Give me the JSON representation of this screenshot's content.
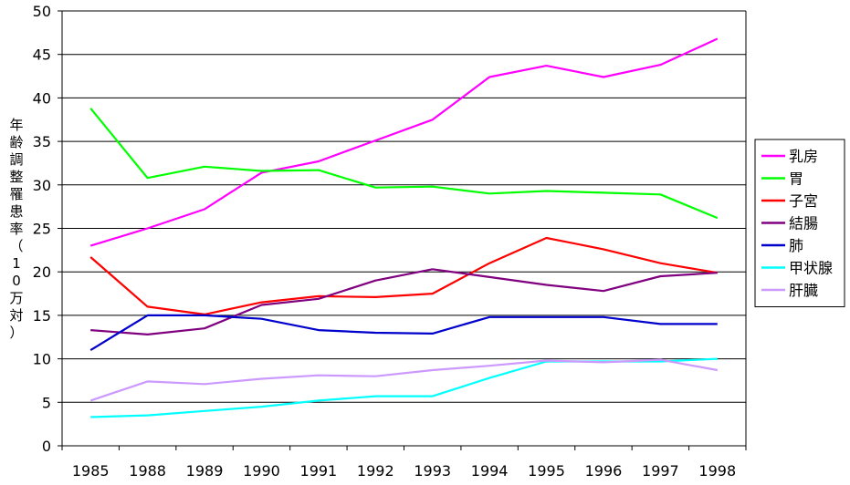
{
  "chart_data": {
    "type": "line",
    "title": "",
    "xlabel": "",
    "ylabel": "年齢調整罹患率（10万対）",
    "ylim": [
      0,
      50
    ],
    "yticks": [
      "0",
      "5",
      "10",
      "15",
      "20",
      "25",
      "30",
      "35",
      "40",
      "45",
      "50"
    ],
    "categories": [
      "1985",
      "1988",
      "1989",
      "1990",
      "1991",
      "1992",
      "1993",
      "1994",
      "1995",
      "1996",
      "1997",
      "1998"
    ],
    "grid": "horizontal",
    "legend_position": "right",
    "series": [
      {
        "name": "乳房",
        "color": "#FF00FF",
        "values": [
          23.0,
          25.0,
          27.2,
          31.4,
          32.7,
          35.1,
          37.5,
          42.4,
          43.7,
          42.4,
          43.8,
          46.8
        ]
      },
      {
        "name": "胃",
        "color": "#00FF00",
        "values": [
          38.8,
          30.8,
          32.1,
          31.6,
          31.7,
          29.7,
          29.8,
          29.0,
          29.3,
          29.1,
          28.9,
          26.2
        ]
      },
      {
        "name": "子宮",
        "color": "#FF0000",
        "values": [
          21.7,
          16.0,
          15.1,
          16.5,
          17.2,
          17.1,
          17.5,
          21.0,
          23.9,
          22.6,
          21.0,
          19.9
        ]
      },
      {
        "name": "結腸",
        "color": "#800080",
        "values": [
          13.3,
          12.8,
          13.5,
          16.2,
          16.9,
          19.0,
          20.3,
          19.4,
          18.5,
          17.8,
          19.5,
          19.9
        ]
      },
      {
        "name": "肺",
        "color": "#0000CC",
        "values": [
          11.0,
          15.0,
          15.0,
          14.6,
          13.3,
          13.0,
          12.9,
          14.8,
          14.8,
          14.8,
          14.0,
          14.0
        ]
      },
      {
        "name": "甲状腺",
        "color": "#00FFFF",
        "values": [
          3.3,
          3.5,
          4.0,
          4.5,
          5.2,
          5.7,
          5.7,
          7.8,
          9.7,
          9.7,
          9.7,
          10.0
        ]
      },
      {
        "name": "肝臓",
        "color": "#CC99FF",
        "values": [
          5.2,
          7.4,
          7.1,
          7.7,
          8.1,
          8.0,
          8.7,
          9.2,
          9.8,
          9.6,
          9.9,
          8.7
        ]
      }
    ]
  }
}
